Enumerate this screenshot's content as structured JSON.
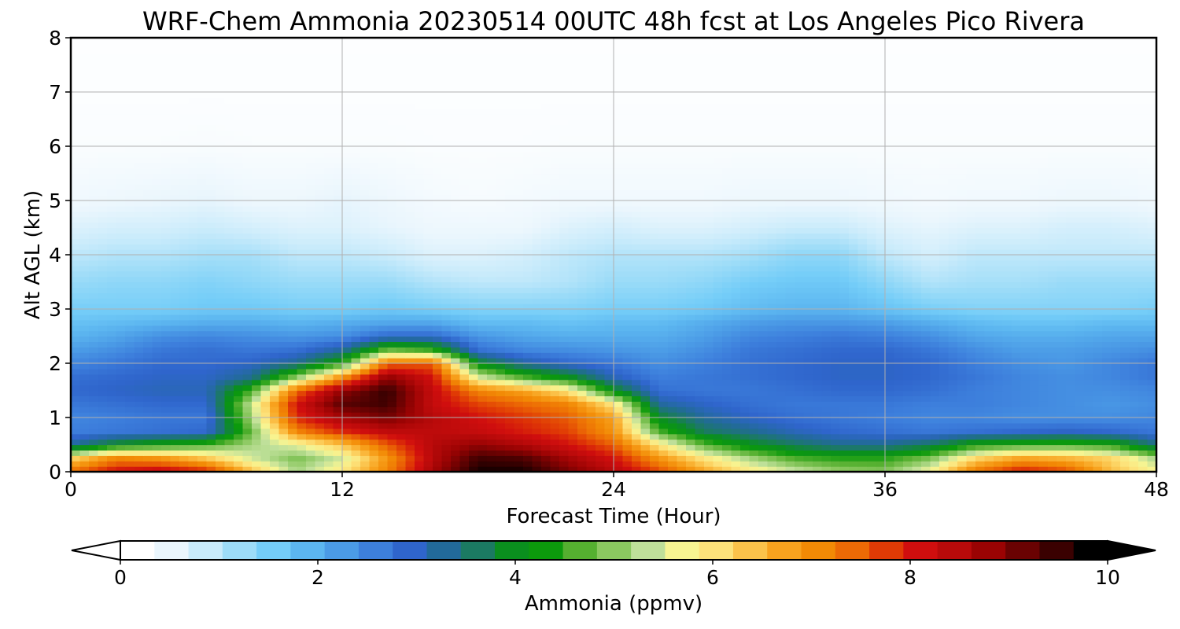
{
  "chart_data": {
    "type": "heatmap",
    "title": "WRF-Chem Ammonia  20230514 00UTC 48h fcst at Los Angeles Pico Rivera",
    "xlabel": "Forecast Time (Hour)",
    "ylabel": "Alt AGL (km)",
    "xlim": [
      0,
      48
    ],
    "ylim": [
      0,
      8
    ],
    "xticks": [
      "0",
      "12",
      "24",
      "36",
      "48"
    ],
    "yticks": [
      "0",
      "1",
      "2",
      "3",
      "4",
      "5",
      "6",
      "7",
      "8"
    ],
    "grid": true,
    "colorbar": {
      "label": "Ammonia  (ppmv)",
      "range": [
        0,
        10
      ],
      "ticks": [
        "0",
        "2",
        "4",
        "6",
        "8",
        "10"
      ],
      "extend": "both",
      "colors": [
        "#ffffff",
        "#eaf6fd",
        "#c9ebfb",
        "#9ddcf8",
        "#74cdf8",
        "#5cb6f0",
        "#4b9be6",
        "#3d7fdc",
        "#2f65cc",
        "#226a9a",
        "#1b7a62",
        "#0a8f1e",
        "#0c9a0c",
        "#55b030",
        "#8bc860",
        "#bfe09a",
        "#f7f592",
        "#fde27a",
        "#fbc24a",
        "#f8a21e",
        "#f28a05",
        "#ec6a05",
        "#e03a05",
        "#d00e0e",
        "#b80a0a",
        "#9a0303",
        "#6a0202",
        "#3a0101",
        "#000000"
      ]
    },
    "x_hours": [
      0,
      2,
      4,
      6,
      8,
      10,
      12,
      14,
      16,
      18,
      20,
      22,
      24,
      26,
      28,
      30,
      32,
      34,
      36,
      38,
      40,
      42,
      44,
      46,
      48
    ],
    "z_km": [
      0,
      0.25,
      0.5,
      0.75,
      1,
      1.25,
      1.5,
      1.75,
      2,
      2.25,
      2.5,
      2.75,
      3,
      3.5,
      4,
      4.5,
      5,
      6,
      7,
      8
    ],
    "values": [
      [
        7.5,
        8.3,
        8.5,
        8.1,
        6.5,
        5.2,
        6.0,
        7.2,
        8.8,
        9.9,
        9.9,
        9.2,
        8.6,
        7.8,
        6.8,
        6.0,
        5.5,
        5.1,
        5.0,
        5.8,
        7.4,
        8.2,
        7.8,
        6.5,
        5.8
      ],
      [
        6.2,
        7.2,
        7.0,
        6.4,
        5.5,
        4.9,
        5.5,
        7.0,
        8.6,
        9.6,
        9.5,
        8.8,
        8.2,
        7.0,
        6.0,
        5.2,
        4.6,
        4.4,
        4.4,
        4.9,
        6.2,
        6.8,
        6.6,
        6.2,
        5.2
      ],
      [
        3.2,
        4.0,
        4.3,
        4.6,
        5.2,
        5.6,
        6.4,
        7.6,
        8.6,
        9.0,
        8.7,
        8.2,
        7.6,
        6.0,
        4.7,
        4.0,
        3.6,
        3.3,
        3.3,
        3.6,
        4.3,
        4.5,
        4.6,
        4.4,
        3.4
      ],
      [
        2.5,
        2.6,
        2.7,
        2.8,
        4.8,
        7.2,
        8.0,
        8.5,
        8.5,
        8.4,
        8.1,
        7.8,
        7.0,
        4.6,
        3.6,
        3.3,
        3.0,
        2.8,
        2.7,
        2.6,
        2.7,
        2.8,
        2.9,
        2.8,
        2.6
      ],
      [
        2.4,
        2.5,
        2.6,
        2.6,
        5.2,
        8.0,
        8.8,
        9.2,
        8.6,
        8.2,
        7.9,
        7.6,
        6.8,
        3.9,
        3.2,
        2.9,
        2.7,
        2.6,
        2.5,
        2.4,
        2.4,
        2.3,
        2.3,
        2.3,
        2.4
      ],
      [
        2.6,
        2.7,
        2.8,
        2.8,
        5.4,
        8.2,
        9.4,
        9.6,
        8.4,
        7.8,
        7.5,
        7.2,
        6.0,
        3.2,
        2.9,
        2.7,
        2.6,
        2.6,
        2.6,
        2.5,
        2.5,
        2.4,
        2.3,
        2.2,
        2.3
      ],
      [
        2.8,
        2.9,
        3.0,
        3.0,
        4.6,
        7.5,
        9.0,
        9.7,
        8.4,
        7.2,
        6.8,
        6.0,
        4.0,
        2.7,
        2.6,
        2.6,
        2.7,
        2.8,
        2.8,
        2.7,
        2.5,
        2.4,
        2.3,
        2.3,
        2.4
      ],
      [
        2.7,
        2.8,
        2.9,
        2.9,
        3.3,
        5.0,
        7.0,
        9.0,
        8.2,
        5.5,
        4.6,
        4.0,
        3.0,
        2.5,
        2.6,
        2.7,
        2.8,
        2.9,
        2.9,
        2.8,
        2.6,
        2.4,
        2.3,
        2.4,
        2.6
      ],
      [
        2.4,
        2.6,
        2.8,
        2.8,
        2.9,
        3.3,
        4.4,
        7.5,
        7.6,
        4.0,
        3.2,
        2.8,
        2.6,
        2.3,
        2.5,
        2.7,
        2.8,
        2.9,
        2.9,
        2.8,
        2.5,
        2.3,
        2.2,
        2.4,
        2.6
      ],
      [
        2.1,
        2.3,
        2.6,
        2.7,
        2.6,
        2.7,
        3.2,
        4.8,
        4.5,
        2.7,
        2.4,
        2.3,
        2.2,
        2.1,
        2.3,
        2.6,
        2.7,
        2.8,
        2.8,
        2.6,
        2.3,
        2.1,
        2.1,
        2.2,
        2.3
      ],
      [
        1.8,
        2.0,
        2.3,
        2.4,
        2.3,
        2.2,
        2.3,
        2.8,
        2.8,
        2.2,
        2.0,
        1.9,
        1.9,
        1.9,
        2.1,
        2.4,
        2.5,
        2.6,
        2.5,
        2.3,
        2.0,
        1.9,
        1.9,
        2.0,
        2.0
      ],
      [
        1.6,
        1.7,
        1.8,
        1.9,
        1.9,
        1.8,
        1.9,
        2.0,
        2.0,
        1.7,
        1.7,
        1.6,
        1.7,
        1.7,
        1.9,
        2.1,
        2.2,
        2.2,
        2.1,
        1.9,
        1.7,
        1.6,
        1.6,
        1.7,
        1.7
      ],
      [
        1.4,
        1.4,
        1.4,
        1.5,
        1.5,
        1.4,
        1.4,
        1.5,
        1.4,
        1.3,
        1.3,
        1.3,
        1.4,
        1.4,
        1.5,
        1.7,
        1.8,
        1.8,
        1.6,
        1.4,
        1.3,
        1.3,
        1.3,
        1.3,
        1.4
      ],
      [
        1.1,
        1.2,
        1.2,
        1.3,
        1.2,
        1.1,
        1.1,
        1.1,
        0.9,
        0.8,
        0.8,
        0.9,
        1.1,
        1.1,
        1.2,
        1.4,
        1.5,
        1.5,
        1.2,
        0.9,
        1.0,
        1.0,
        1.1,
        1.1,
        1.1
      ],
      [
        0.8,
        0.9,
        0.9,
        1.0,
        1.0,
        0.8,
        0.8,
        0.7,
        0.5,
        0.5,
        0.6,
        0.8,
        0.9,
        0.9,
        0.9,
        1.0,
        1.2,
        1.2,
        0.8,
        0.6,
        0.8,
        0.8,
        0.8,
        0.8,
        0.8
      ],
      [
        0.5,
        0.6,
        0.6,
        0.7,
        0.6,
        0.5,
        0.5,
        0.4,
        0.3,
        0.3,
        0.3,
        0.5,
        0.6,
        0.5,
        0.5,
        0.6,
        0.7,
        0.7,
        0.5,
        0.4,
        0.5,
        0.5,
        0.6,
        0.6,
        0.5
      ],
      [
        0.25,
        0.3,
        0.35,
        0.4,
        0.3,
        0.3,
        0.4,
        0.3,
        0.2,
        0.15,
        0.2,
        0.25,
        0.25,
        0.25,
        0.25,
        0.3,
        0.3,
        0.3,
        0.25,
        0.2,
        0.25,
        0.25,
        0.3,
        0.3,
        0.25
      ],
      [
        0.1,
        0.1,
        0.1,
        0.12,
        0.1,
        0.1,
        0.1,
        0.1,
        0.08,
        0.08,
        0.08,
        0.1,
        0.1,
        0.1,
        0.1,
        0.1,
        0.1,
        0.1,
        0.1,
        0.1,
        0.1,
        0.1,
        0.1,
        0.1,
        0.1
      ],
      [
        0.05,
        0.05,
        0.05,
        0.05,
        0.05,
        0.05,
        0.05,
        0.05,
        0.05,
        0.05,
        0.05,
        0.05,
        0.05,
        0.05,
        0.05,
        0.05,
        0.05,
        0.05,
        0.05,
        0.05,
        0.05,
        0.05,
        0.05,
        0.05,
        0.05
      ],
      [
        0.04,
        0.04,
        0.04,
        0.04,
        0.04,
        0.04,
        0.04,
        0.04,
        0.04,
        0.04,
        0.04,
        0.04,
        0.04,
        0.04,
        0.04,
        0.04,
        0.04,
        0.04,
        0.04,
        0.04,
        0.04,
        0.04,
        0.04,
        0.04,
        0.04
      ]
    ]
  }
}
